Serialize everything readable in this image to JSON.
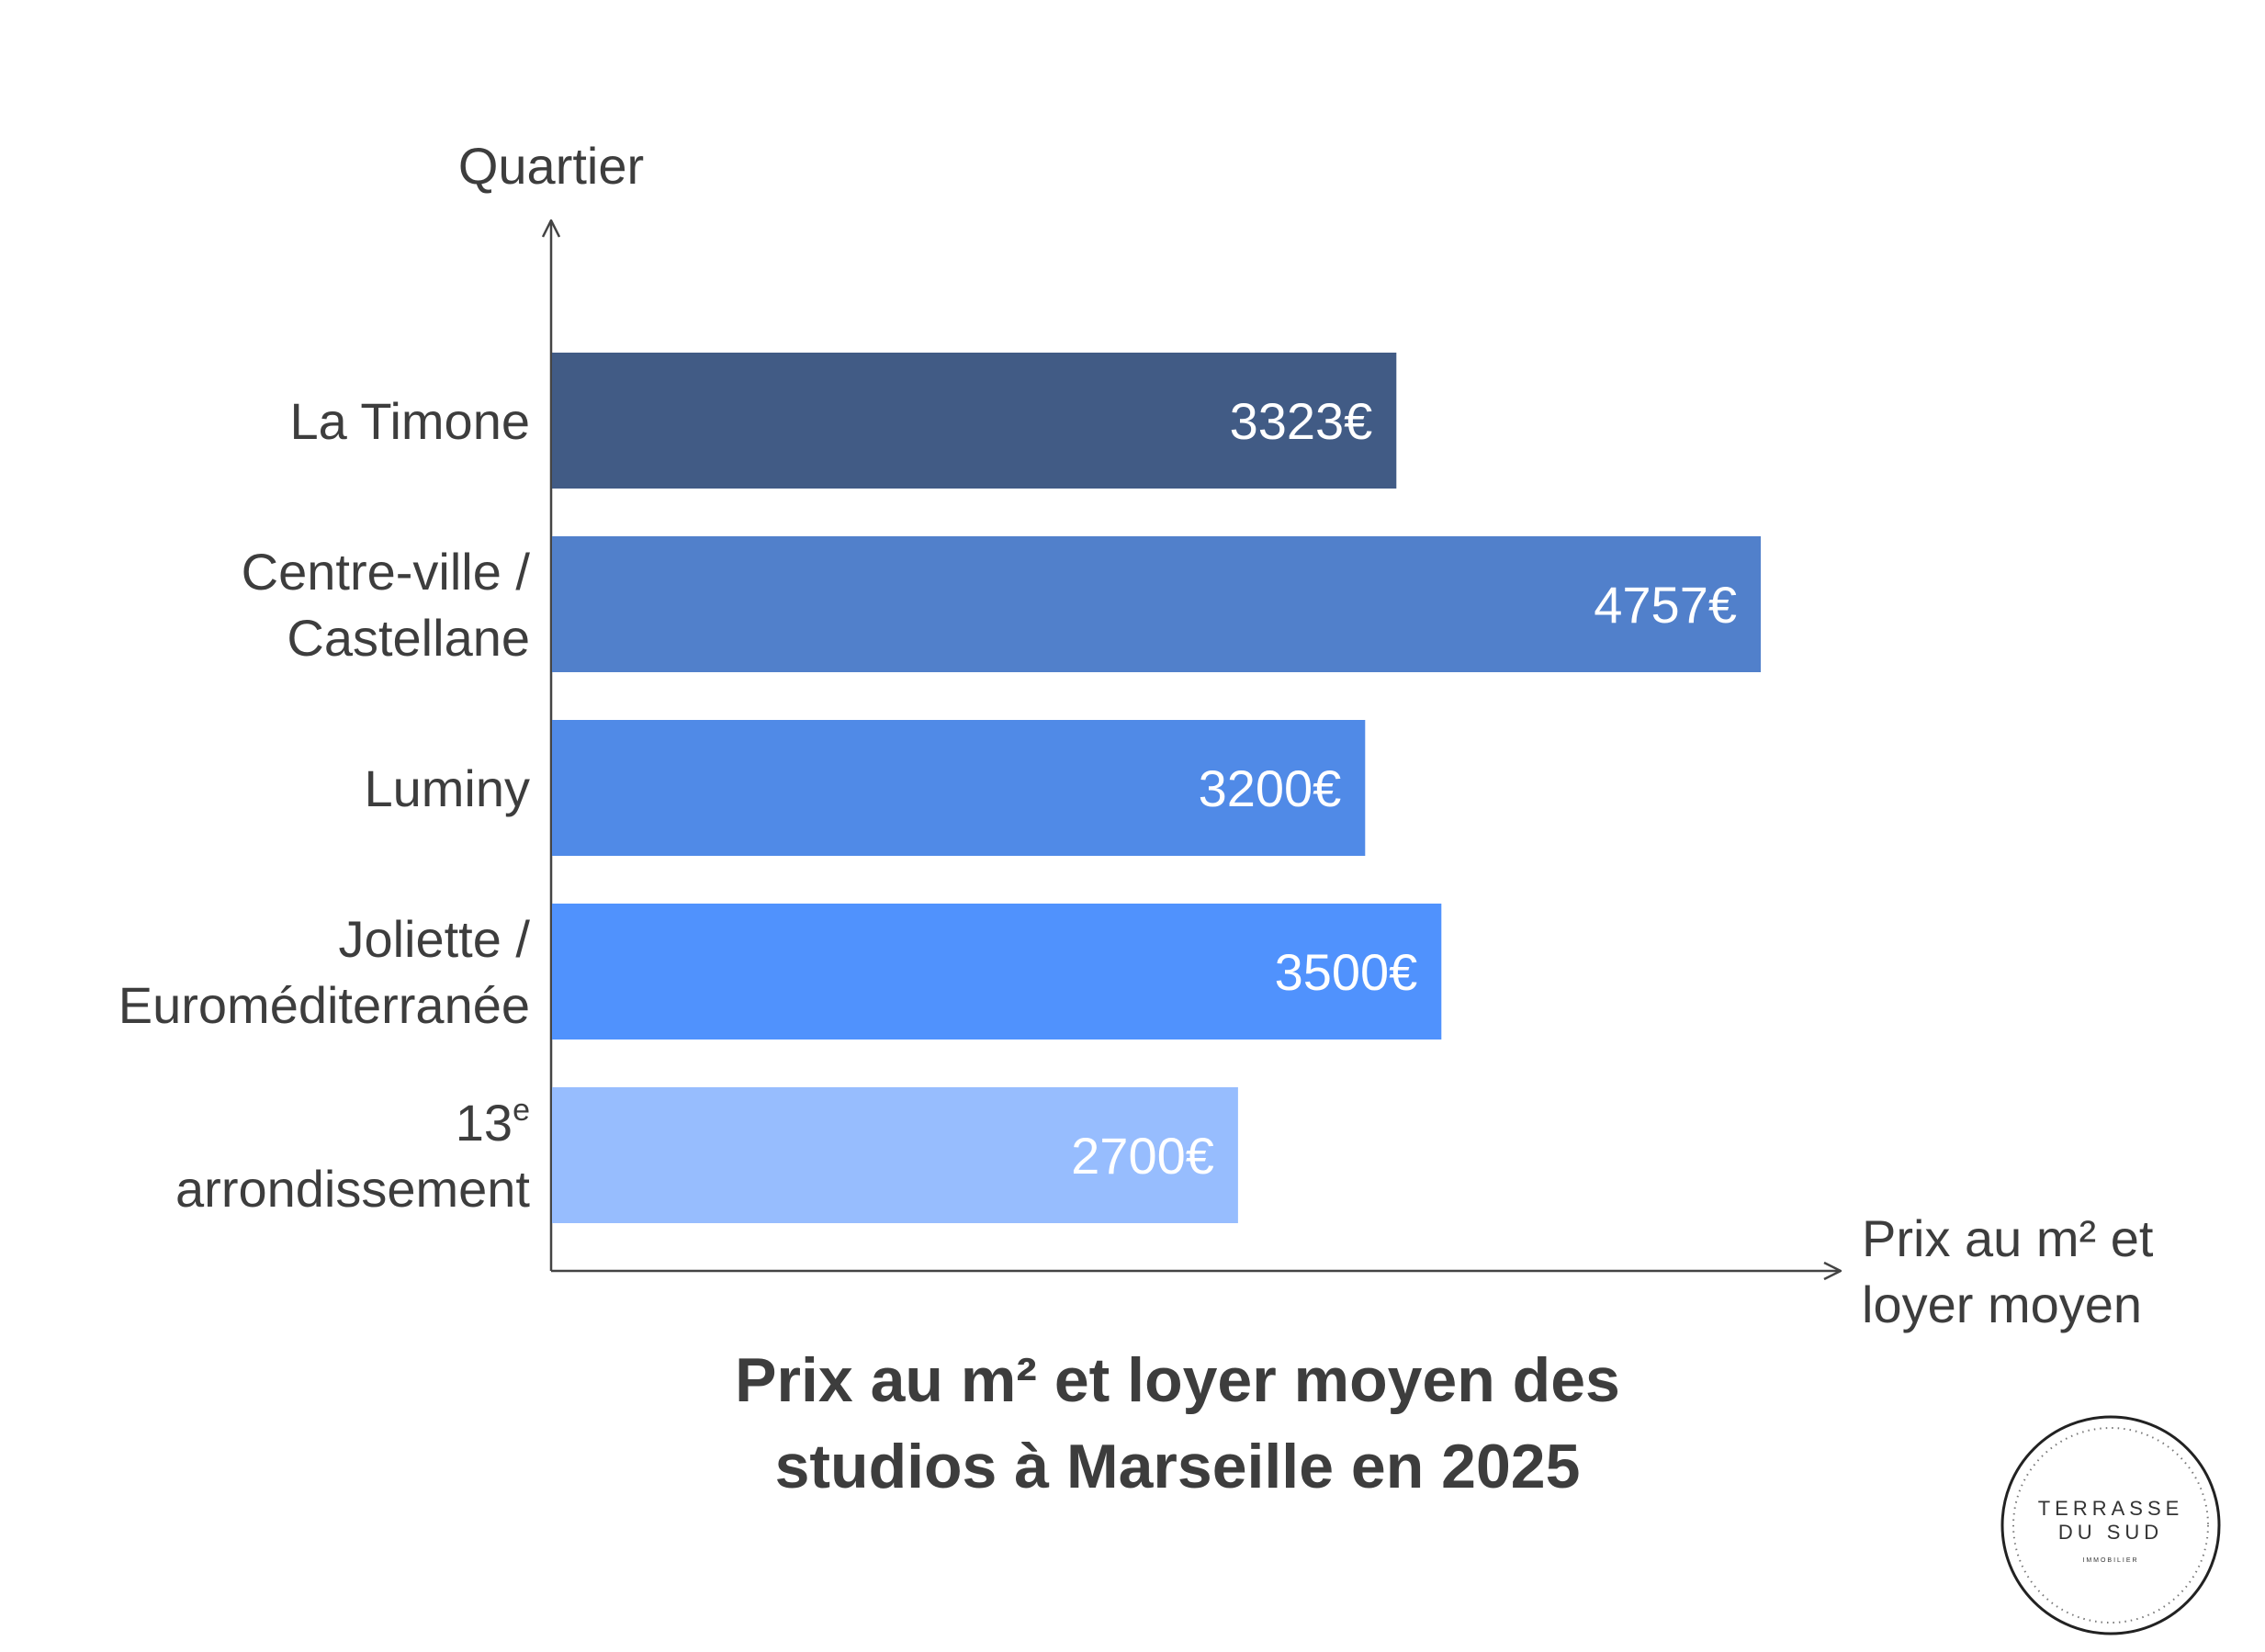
{
  "chart_data": {
    "type": "bar",
    "orientation": "horizontal",
    "title_lines": [
      "Prix au m² et loyer moyen des",
      "studios à Marseille en 2025"
    ],
    "ylabel": "Quartier",
    "xlabel_lines": [
      "Prix au m² et",
      "loyer moyen"
    ],
    "categories": [
      {
        "lines": [
          "La Timone"
        ]
      },
      {
        "lines": [
          "Centre-ville /",
          "Castellane"
        ]
      },
      {
        "lines": [
          "Luminy"
        ]
      },
      {
        "lines": [
          "Joliette /",
          "Euroméditerranée"
        ]
      },
      {
        "lines": [
          "13",
          "arrondissement"
        ],
        "superscript": "e"
      }
    ],
    "values": [
      3323,
      4757,
      3200,
      3500,
      2700
    ],
    "value_labels": [
      "3323€",
      "4757€",
      "3200€",
      "3500€",
      "2700€"
    ],
    "colors": [
      "#415b85",
      "#5180cb",
      "#508ae7",
      "#5092fd",
      "#97bdfe"
    ],
    "value_max": 4757,
    "grid": false,
    "legend": "none"
  },
  "logo": {
    "line1": "TERRASSE",
    "line2": "DU SUD",
    "line3": "IMMOBILIER"
  }
}
